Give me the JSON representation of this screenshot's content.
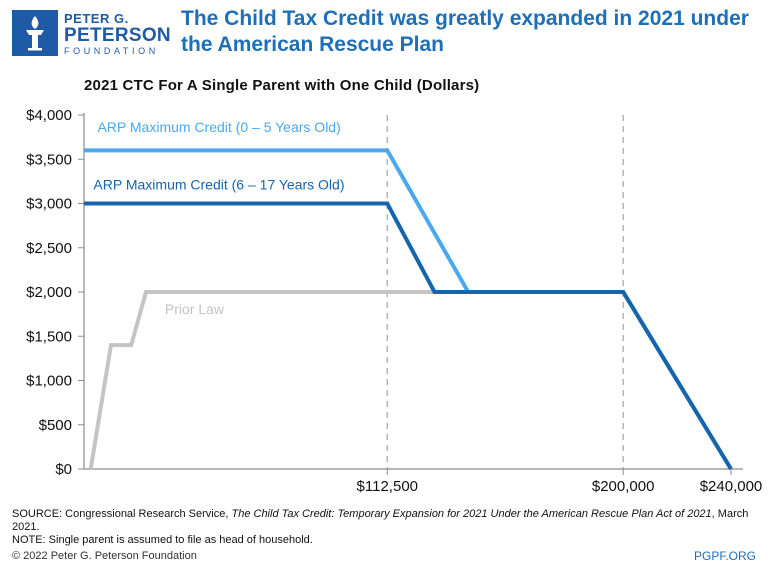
{
  "header": {
    "logo": {
      "line1": "PETER G.",
      "line2": "PETERSON",
      "line3": "FOUNDATION",
      "icon": "torch-icon",
      "color": "#1f5aa6"
    },
    "headline": "The Child Tax Credit was greatly expanded in 2021 under the American Rescue Plan"
  },
  "chart_data": {
    "type": "line",
    "title": "2021 CTC For A Single Parent with One Child (Dollars)",
    "xlabel": "",
    "ylabel": "",
    "xlim": [
      0,
      240000
    ],
    "ylim": [
      0,
      4000
    ],
    "x_ticks": [
      {
        "value": 112500,
        "label": "$112,500"
      },
      {
        "value": 200000,
        "label": "$200,000"
      },
      {
        "value": 240000,
        "label": "$240,000"
      }
    ],
    "y_ticks": [
      {
        "value": 0,
        "label": "$0"
      },
      {
        "value": 500,
        "label": "$500"
      },
      {
        "value": 1000,
        "label": "$1,000"
      },
      {
        "value": 1500,
        "label": "$1,500"
      },
      {
        "value": 2000,
        "label": "$2,000"
      },
      {
        "value": 2500,
        "label": "$2,500"
      },
      {
        "value": 3000,
        "label": "$3,000"
      },
      {
        "value": 3500,
        "label": "$3,500"
      },
      {
        "value": 4000,
        "label": "$4,000"
      }
    ],
    "reference_lines_x": [
      112500,
      200000
    ],
    "grid": false,
    "series": [
      {
        "name": "Prior Law",
        "color": "#c4c4c4",
        "label_position": [
          30000,
          1750
        ],
        "points": [
          [
            2500,
            0
          ],
          [
            10000,
            1400
          ],
          [
            17500,
            1400
          ],
          [
            23000,
            2000
          ],
          [
            200000,
            2000
          ]
        ]
      },
      {
        "name": "ARP Maximum Credit (0 – 5 Years Old)",
        "color": "#4aa8f0",
        "label_position": [
          5000,
          3810
        ],
        "points": [
          [
            0,
            3600
          ],
          [
            112500,
            3600
          ],
          [
            142500,
            2000
          ],
          [
            200000,
            2000
          ],
          [
            240000,
            0
          ]
        ]
      },
      {
        "name": "ARP Maximum Credit (6 – 17 Years Old)",
        "color": "#1565ad",
        "label_position": [
          3500,
          3160
        ],
        "points": [
          [
            0,
            3000
          ],
          [
            112500,
            3000
          ],
          [
            130000,
            2000
          ],
          [
            200000,
            2000
          ],
          [
            240000,
            0
          ]
        ]
      }
    ]
  },
  "source": {
    "prefix": "SOURCE: Congressional Research Service, ",
    "italic": "The Child Tax Credit: Temporary Expansion for 2021 Under the American Rescue Plan Act of 2021",
    "suffix": ", March 2021.",
    "note": "NOTE: Single parent is assumed to file as head of household."
  },
  "footer": {
    "copyright": "© 2022 Peter G. Peterson Foundation",
    "site": "PGPF.ORG"
  }
}
